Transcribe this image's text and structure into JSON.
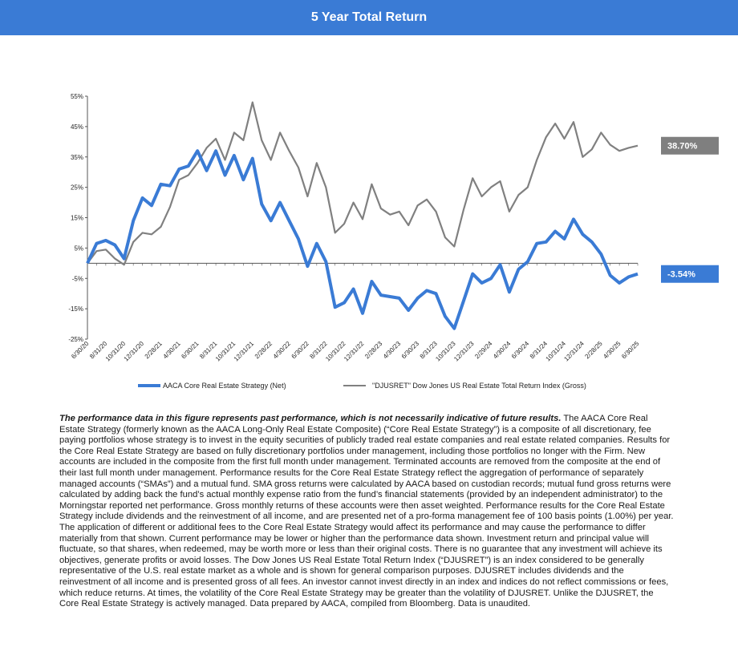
{
  "header": {
    "title": "5 Year Total Return"
  },
  "chart_data": {
    "type": "line",
    "title": "5 Year Total Return",
    "ylim": [
      -25,
      55
    ],
    "yticks": [
      "55%",
      "45%",
      "35%",
      "25%",
      "15%",
      "5%",
      "-5%",
      "-15%",
      "-25%"
    ],
    "ytick_values": [
      55,
      45,
      35,
      25,
      15,
      5,
      -5,
      -15,
      -25
    ],
    "x_labels": [
      "6/30/20",
      "8/31/20",
      "10/31/20",
      "12/31/20",
      "2/28/21",
      "4/30/21",
      "6/30/21",
      "8/31/21",
      "10/31/21",
      "12/31/21",
      "2/28/22",
      "4/30/22",
      "6/30/22",
      "8/31/22",
      "10/31/22",
      "12/31/22",
      "2/28/23",
      "4/30/23",
      "6/30/23",
      "8/31/23",
      "10/31/23",
      "12/31/23",
      "2/29/24",
      "4/30/24",
      "6/30/24",
      "8/31/24",
      "10/31/24",
      "12/31/24",
      "2/28/25",
      "4/30/25",
      "6/30/25"
    ],
    "grid": false,
    "legend_position": "bottom",
    "series": [
      {
        "name": "AACA Core Real Estate Strategy (Net)",
        "color": "#3a7bd5",
        "values": [
          0,
          6.5,
          7.5,
          6,
          1.5,
          14,
          21.5,
          19,
          26,
          25.5,
          31,
          32,
          37,
          30.5,
          37,
          29,
          35.5,
          27.5,
          34.5,
          19.5,
          14,
          20,
          14,
          8,
          -1,
          6.5,
          0.5,
          -14.5,
          -13,
          -8.5,
          -16.5,
          -6,
          -10.5,
          -11,
          -11.5,
          -15.5,
          -11.5,
          -9,
          -10,
          -17.5,
          -21.5,
          -12.5,
          -3.5,
          -6.5,
          -5,
          -0.5,
          -9.5,
          -2,
          0.5,
          6.5,
          7,
          10.5,
          8,
          14.5,
          9.5,
          7,
          3,
          -4,
          -6.5,
          -4.5,
          -3.54
        ]
      },
      {
        "name": "\"DJUSRET\" Dow Jones US Real Estate Total Return Index (Gross)",
        "color": "#808080",
        "values": [
          0,
          4,
          4.5,
          1.5,
          -0.5,
          7,
          10,
          9.5,
          12,
          18.5,
          27.5,
          29,
          33,
          38,
          41,
          34,
          43,
          40.5,
          53,
          40.5,
          34,
          43,
          37,
          31.5,
          22,
          33,
          25,
          10,
          13,
          20,
          14.5,
          26,
          18,
          16,
          17,
          12.5,
          19,
          21,
          17,
          8.5,
          5.5,
          17.5,
          28,
          22,
          25,
          27,
          17,
          22.5,
          25,
          34,
          41.5,
          46,
          41,
          46.5,
          35,
          37.5,
          43,
          39,
          37,
          38,
          38.7
        ]
      }
    ],
    "end_labels": [
      "-3.54%",
      "38.70%"
    ]
  },
  "legend": {
    "net": "AACA Core Real Estate Strategy (Net)",
    "gross": "\"DJUSRET\" Dow Jones US Real Estate Total Return Index (Gross)"
  },
  "disclaimer": {
    "lead": "The performance data in this figure represents past performance, which is not necessarily indicative of future results.",
    "body": " The AACA  Core Real Estate Strategy (formerly known as the AACA  Long-Only Real Estate Composite) (“Core Real Estate Strategy”) is a composite of all discretionary, fee paying portfolios whose strategy is to invest in the equity securities of publicly traded real estate companies and real estate related companies. Results for the Core Real Estate Strategy  are based on fully discretionary portfolios under management, including those portfolios no longer with the Firm. New accounts are included in the composite from the first full month under management. Terminated accounts are removed from the composite at the end of their last full month under management. Performance results for the Core Real Estate Strategy reflect the aggregation of performance of separately managed accounts (“SMAs”) and a mutual fund. SMA  gross returns were calculated by AACA  based on custodian records; mutual fund gross returns were calculated by adding back the fund’s actual monthly expense ratio from the fund’s financial statements (provided by an independent administrator) to the Morningstar reported net performance. Gross monthly returns of these accounts were then asset weighted. Performance results for the Core Real Estate Strategy include dividends and the reinvestment of all income, and are presented net of a pro-forma management fee of 100 basis points (1.00%) per year. The application of different or additional fees to the Core Real Estate Strategy would affect its performance and may cause the performance to differ materially from that  shown. Current performance may be lower or higher than the performance data shown. Investment return and principal value will fluctuate, so that shares, when redeemed, may be worth more or less than their original costs. There is no guarantee that any investment will achieve its objectives, generate profits or avoid losses. The Dow Jones US Real Estate Total Return Index (“DJUSRET”) is an index considered to be generally representative of the U.S. real estate market as a whole and is shown for general comparison purposes. DJUSRET includes dividends and the reinvestment of all income and is presented gross of all fees. An investor cannot invest directly in an index and indices do not reflect commissions or fees, which reduce returns. At times, the volatility of the Core Real Estate Strategy  may be greater than the volatility of DJUSRET. Unlike the DJUSRET, the Core Real Estate Strategy is actively  managed. Data prepared by AACA,   compiled from Bloomberg. Data is unaudited."
  }
}
